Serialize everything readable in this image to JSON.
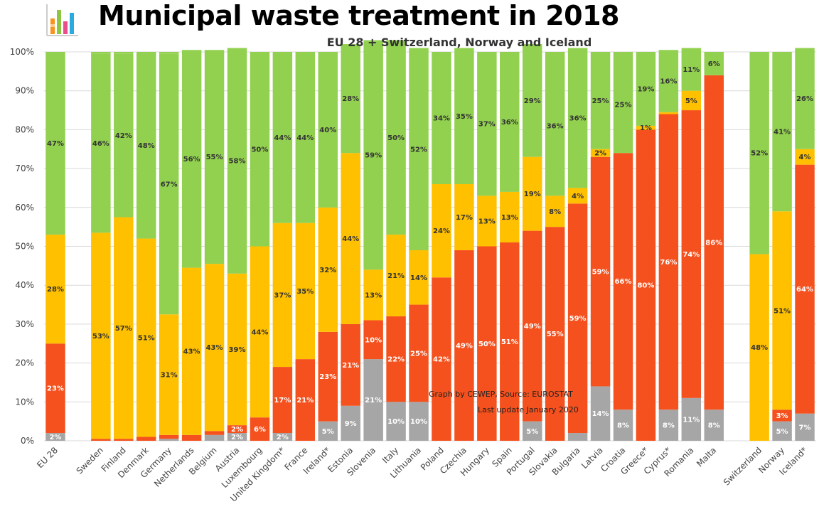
{
  "header": {
    "title": "Municipal waste treatment in 2018",
    "subtitle": "EU 28 + Switzerland, Norway and Iceland"
  },
  "logo": {
    "icon": "bar-chart-logo-icon",
    "colors": [
      "#8dc63f",
      "#f7941d",
      "#e94d8a",
      "#29abe2",
      "#ffc000"
    ]
  },
  "annotation": {
    "line1": "Graph by CEWEP, Source: EUROSTAT",
    "line2": "Last update January 2020"
  },
  "chart_data": {
    "type": "bar",
    "stacked": true,
    "ylim": [
      0,
      100
    ],
    "yticks": [
      "0%",
      "10%",
      "20%",
      "30%",
      "40%",
      "50%",
      "60%",
      "70%",
      "80%",
      "90%",
      "100%"
    ],
    "grid": true,
    "categories": [
      "EU 28",
      "Sweden",
      "Finland",
      "Denmark",
      "Germany",
      "Netherlands",
      "Belgium",
      "Austria",
      "Luxembourg",
      "United Kingdom*",
      "France",
      "Ireland*",
      "Estonia",
      "Slovenia",
      "Italy",
      "Lithuania",
      "Poland",
      "Czechia",
      "Hungary",
      "Spain",
      "Portugal",
      "Slovakia",
      "Bulgaria",
      "Latvia",
      "Croatia",
      "Greece*",
      "Cyprus*",
      "Romania",
      "Malta",
      "Switzerland",
      "Norway",
      "Iceland*"
    ],
    "gaps_after": [
      "EU 28",
      "Malta"
    ],
    "series": [
      {
        "color": "#a6a6a6",
        "label_color": "#ffffff",
        "values": [
          2,
          0,
          0,
          0,
          0.5,
          0,
          1.5,
          2,
          0,
          2,
          0,
          5,
          9,
          21,
          10,
          10,
          0,
          0,
          0,
          0,
          5,
          0,
          2,
          14,
          8,
          0,
          8,
          11,
          8,
          0,
          5,
          7
        ],
        "labels": [
          "2%",
          "",
          "",
          "",
          "",
          "",
          "",
          "2%",
          "",
          "2%",
          "",
          "5%",
          "9%",
          "21%",
          "10%",
          "10%",
          "",
          "",
          "",
          "",
          "5%",
          "",
          "",
          "14%",
          "8%",
          "",
          "8%",
          "11%",
          "8%",
          "",
          "5%",
          "7%"
        ]
      },
      {
        "color": "#f4511e",
        "label_color": "#ffffff",
        "values": [
          23,
          0.5,
          0.5,
          1,
          1,
          1.5,
          1,
          2,
          6,
          17,
          21,
          23,
          21,
          10,
          22,
          25,
          42,
          49,
          50,
          51,
          49,
          55,
          59,
          59,
          66,
          80,
          76,
          74,
          86,
          0,
          3,
          64
        ],
        "labels": [
          "23%",
          "",
          "",
          "",
          "",
          "",
          "",
          "2%",
          "6%",
          "17%",
          "21%",
          "23%",
          "21%",
          "10%",
          "22%",
          "25%",
          "42%",
          "49%",
          "50%",
          "51%",
          "49%",
          "55%",
          "59%",
          "59%",
          "66%",
          "80%",
          "76%",
          "74%",
          "86%",
          "",
          "3%",
          "64%"
        ]
      },
      {
        "color": "#ffc000",
        "label_color": "#333333",
        "values": [
          28,
          53,
          57,
          51,
          31,
          43,
          43,
          39,
          44,
          37,
          35,
          32,
          44,
          13,
          21,
          14,
          24,
          17,
          13,
          13,
          19,
          8,
          4,
          2,
          0,
          1,
          0.5,
          5,
          0,
          48,
          51,
          4
        ],
        "labels": [
          "28%",
          "53%",
          "57%",
          "51%",
          "31%",
          "43%",
          "43%",
          "39%",
          "44%",
          "37%",
          "35%",
          "32%",
          "44%",
          "13%",
          "21%",
          "14%",
          "24%",
          "17%",
          "13%",
          "13%",
          "19%",
          "8%",
          "4%",
          "2%",
          "",
          "1%",
          "",
          "5%",
          "",
          "48%",
          "51%",
          "4%"
        ]
      },
      {
        "color": "#92d050",
        "label_color": "#333333",
        "values": [
          47,
          46,
          42,
          48,
          67,
          56,
          55,
          58,
          50,
          44,
          44,
          40,
          28,
          59,
          50,
          52,
          34,
          35,
          37,
          36,
          29,
          36,
          36,
          25,
          25,
          19,
          16,
          11,
          6,
          52,
          41,
          26
        ],
        "labels": [
          "47%",
          "46%",
          "42%",
          "48%",
          "67%",
          "56%",
          "55%",
          "58%",
          "50%",
          "44%",
          "44%",
          "40%",
          "28%",
          "59%",
          "50%",
          "52%",
          "34%",
          "35%",
          "37%",
          "36%",
          "29%",
          "36%",
          "36%",
          "25%",
          "25%",
          "19%",
          "16%",
          "11%",
          "6%",
          "52%",
          "41%",
          "26%"
        ]
      }
    ]
  }
}
